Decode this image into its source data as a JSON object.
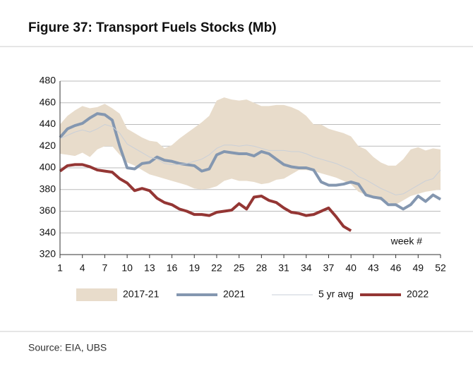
{
  "chart_data": {
    "type": "line",
    "title": "Figure 37: Transport Fuels Stocks (Mb)",
    "source": "Source: EIA, UBS",
    "annotation": "week #",
    "x": [
      1,
      2,
      3,
      4,
      5,
      6,
      7,
      8,
      9,
      10,
      11,
      12,
      13,
      14,
      15,
      16,
      17,
      18,
      19,
      20,
      21,
      22,
      23,
      24,
      25,
      26,
      27,
      28,
      29,
      30,
      31,
      32,
      33,
      34,
      35,
      36,
      37,
      38,
      39,
      40,
      41,
      42,
      43,
      44,
      45,
      46,
      47,
      48,
      49,
      50,
      51,
      52
    ],
    "xlim": [
      1,
      52
    ],
    "xticks": [
      1,
      4,
      7,
      10,
      13,
      16,
      19,
      22,
      25,
      28,
      31,
      34,
      37,
      40,
      43,
      46,
      49,
      52
    ],
    "ylim": [
      320,
      480
    ],
    "yticks": [
      320,
      340,
      360,
      380,
      400,
      420,
      440,
      460,
      480
    ],
    "grid": true,
    "legend": "bottom",
    "series": [
      {
        "name": "2017-21",
        "type": "band",
        "color": "#e8dccb",
        "low": [
          413,
          412,
          411,
          414,
          410,
          417,
          420,
          420,
          412,
          405,
          402,
          398,
          394,
          392,
          390,
          388,
          386,
          384,
          381,
          380,
          381,
          383,
          388,
          390,
          388,
          388,
          387,
          385,
          386,
          389,
          390,
          394,
          398,
          398,
          397,
          395,
          393,
          391,
          388,
          385,
          378,
          375,
          372,
          370,
          368,
          366,
          370,
          374,
          376,
          378,
          379,
          380
        ],
        "high": [
          440,
          448,
          453,
          457,
          455,
          456,
          459,
          455,
          450,
          436,
          432,
          428,
          425,
          424,
          418,
          421,
          427,
          432,
          437,
          442,
          448,
          462,
          465,
          463,
          462,
          463,
          460,
          457,
          457,
          458,
          458,
          456,
          453,
          448,
          440,
          440,
          436,
          434,
          432,
          429,
          420,
          417,
          410,
          405,
          402,
          402,
          408,
          417,
          419,
          416,
          418,
          417
        ]
      },
      {
        "name": "2021",
        "type": "line",
        "color": "#8497b0",
        "width": 4,
        "values": [
          428,
          436,
          439,
          441,
          446,
          450,
          449,
          444,
          420,
          400,
          399,
          404,
          405,
          410,
          407,
          406,
          404,
          403,
          402,
          397,
          399,
          412,
          415,
          414,
          413,
          413,
          411,
          415,
          413,
          408,
          403,
          401,
          400,
          400,
          398,
          387,
          384,
          384,
          385,
          387,
          385,
          375,
          373,
          372,
          366,
          366,
          362,
          366,
          374,
          369,
          375,
          371
        ]
      },
      {
        "name": "5 yr avg",
        "type": "line",
        "color": "#c9cfd8",
        "width": 1,
        "values": [
          427,
          430,
          433,
          435,
          433,
          436,
          440,
          438,
          432,
          422,
          418,
          414,
          410,
          408,
          404,
          403,
          403,
          404,
          406,
          408,
          412,
          418,
          421,
          421,
          420,
          421,
          420,
          418,
          416,
          416,
          416,
          415,
          415,
          413,
          410,
          408,
          406,
          404,
          401,
          398,
          392,
          389,
          385,
          381,
          378,
          375,
          376,
          380,
          384,
          388,
          390,
          398
        ]
      },
      {
        "name": "2022",
        "type": "line",
        "color": "#943634",
        "width": 4,
        "values": [
          397,
          402,
          403,
          403,
          401,
          398,
          397,
          396,
          390,
          386,
          379,
          381,
          379,
          372,
          368,
          366,
          362,
          360,
          357,
          357,
          356,
          359,
          360,
          361,
          367,
          362,
          373,
          374,
          370,
          368,
          363,
          359,
          358,
          356,
          357,
          360,
          363,
          355,
          346,
          342,
          null,
          null,
          null,
          null,
          null,
          null,
          null,
          null,
          null,
          null,
          null,
          null
        ]
      }
    ]
  }
}
